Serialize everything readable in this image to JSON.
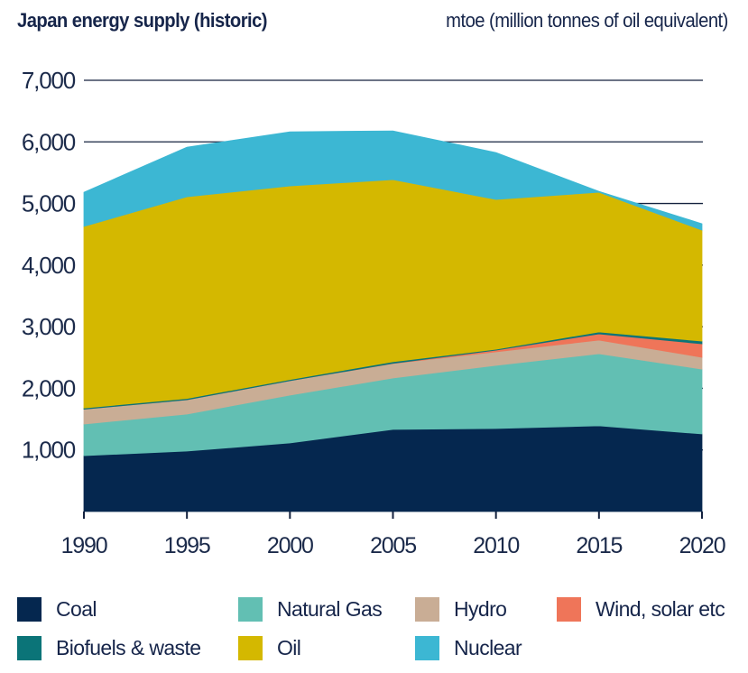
{
  "header": {
    "title": "Japan energy supply (historic)",
    "unit": "mtoe (million tonnes of oil equivalent)"
  },
  "chart_data": {
    "type": "area",
    "stacked": true,
    "title": "Japan energy supply (historic)",
    "ylabel": "mtoe (million tonnes of oil equivalent)",
    "xlabel": "",
    "x": [
      1990,
      1995,
      2000,
      2005,
      2010,
      2015,
      2020
    ],
    "x_tick_labels": [
      "1990",
      "1995",
      "2000",
      "2005",
      "2010",
      "2015",
      "2020"
    ],
    "ylim": [
      0,
      7000
    ],
    "y_ticks": [
      1000,
      2000,
      3000,
      4000,
      5000,
      6000,
      7000
    ],
    "y_tick_labels": [
      "1,000",
      "2,000",
      "3,000",
      "4,000",
      "5,000",
      "6,000",
      "7,000"
    ],
    "grid": "horizontal, upper region only",
    "legend_position": "bottom",
    "series": [
      {
        "name": "Coal",
        "color": "#05274f",
        "values": [
          907,
          981,
          1113,
          1332,
          1347,
          1391,
          1259
        ]
      },
      {
        "name": "Natural Gas",
        "color": "#62bfb3",
        "values": [
          513,
          600,
          776,
          835,
          1025,
          1171,
          1054
        ]
      },
      {
        "name": "Hydro",
        "color": "#c9ad95",
        "values": [
          240,
          234,
          234,
          234,
          220,
          220,
          191
        ]
      },
      {
        "name": "Wind, solar etc",
        "color": "#ef7559",
        "values": [
          0,
          0,
          0,
          5,
          28,
          102,
          219
        ]
      },
      {
        "name": "Biofuels & waste",
        "color": "#0b7478",
        "values": [
          20,
          20,
          20,
          25,
          15,
          30,
          44
        ]
      },
      {
        "name": "Oil",
        "color": "#d4b800",
        "values": [
          2947,
          3275,
          3142,
          2957,
          2431,
          2269,
          1801
        ]
      },
      {
        "name": "Nuclear",
        "color": "#3cb7d3",
        "values": [
          556,
          805,
          879,
          790,
          761,
          15,
          103
        ]
      }
    ]
  },
  "legend": {
    "items": [
      {
        "label": "Coal",
        "color": "#05274f"
      },
      {
        "label": "Natural Gas",
        "color": "#62bfb3"
      },
      {
        "label": "Hydro",
        "color": "#c9ad95"
      },
      {
        "label": "Wind, solar etc",
        "color": "#ef7559"
      },
      {
        "label": "Biofuels & waste",
        "color": "#0b7478"
      },
      {
        "label": "Oil",
        "color": "#d4b800"
      },
      {
        "label": "Nuclear",
        "color": "#3cb7d3"
      }
    ]
  }
}
